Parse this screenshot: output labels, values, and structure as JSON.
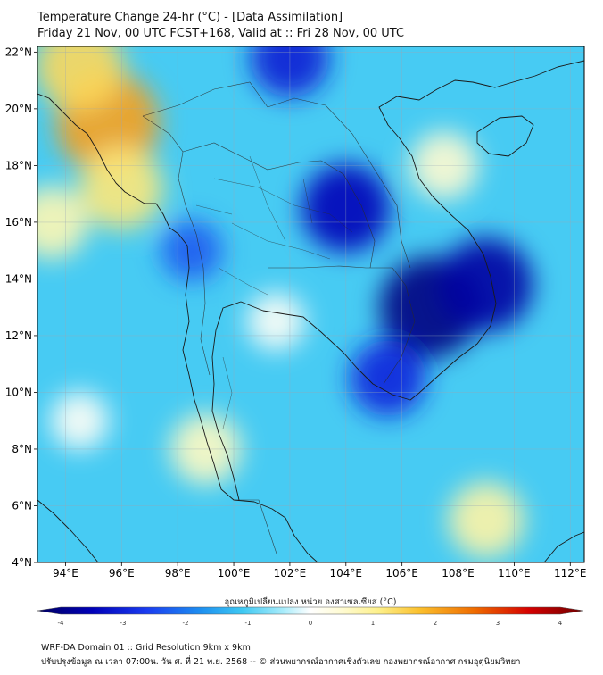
{
  "header": {
    "title": "Temperature Change 24-hr (°C) - [Data Assimilation]",
    "subtitle": "Friday 21 Nov, 00 UTC FCST+168, Valid at :: Fri 28 Nov, 00 UTC"
  },
  "axes": {
    "lon_labels": [
      "94°E",
      "96°E",
      "98°E",
      "100°E",
      "102°E",
      "104°E",
      "106°E",
      "108°E",
      "110°E",
      "112°E"
    ],
    "lon_values": [
      94,
      96,
      98,
      100,
      102,
      104,
      106,
      108,
      110,
      112
    ],
    "lat_labels": [
      "22°N",
      "20°N",
      "18°N",
      "16°N",
      "14°N",
      "12°N",
      "10°N",
      "8°N",
      "6°N",
      "4°N"
    ],
    "lat_values": [
      22,
      20,
      18,
      16,
      14,
      12,
      10,
      8,
      6,
      4
    ],
    "lon_range": [
      93,
      112.5
    ],
    "lat_range": [
      4,
      22.2
    ]
  },
  "colorbar": {
    "label": "อุณหภูมิเปลี่ยนแปลง หน่วย องศาเซลเซียส (°C)",
    "tick_labels": [
      "-4",
      "-3",
      "-2",
      "-1",
      "0",
      "1",
      "2",
      "3",
      "4"
    ],
    "tick_values": [
      -4,
      -3,
      -2,
      -1,
      0,
      1,
      2,
      3,
      4
    ],
    "range": [
      -4,
      4
    ]
  },
  "field": {
    "base_value": -0.95,
    "anomalies": [
      {
        "region": "Myanmar warm (Bay of Bengal coast)",
        "lon": 95.5,
        "lat": 19.5,
        "value": 1.9
      },
      {
        "region": "Myanmar warm north",
        "lon": 94.5,
        "lat": 21.5,
        "value": 1.3
      },
      {
        "region": "Myanmar warm south",
        "lon": 96,
        "lat": 17.2,
        "value": 1.1
      },
      {
        "region": "West coast warm",
        "lon": 93.5,
        "lat": 16,
        "value": 0.7
      },
      {
        "region": "Cambodia / South Vietnam cold",
        "lon": 107,
        "lat": 13,
        "value": -3.7
      },
      {
        "region": "Cambodia east cold",
        "lon": 109,
        "lat": 13.8,
        "value": -3.4
      },
      {
        "region": "Northeast Thailand cold",
        "lon": 104,
        "lat": 16.5,
        "value": -3.2
      },
      {
        "region": "Mekong delta cold",
        "lon": 105.5,
        "lat": 10.5,
        "value": -2.7
      },
      {
        "region": "North Laos cold",
        "lon": 102,
        "lat": 21.8,
        "value": -2.8
      },
      {
        "region": "Northwest Thailand cold",
        "lon": 98.5,
        "lat": 15,
        "value": -2.1
      },
      {
        "region": "Gulf of Thailand near-neutral",
        "lon": 101.5,
        "lat": 12.5,
        "value": 0.1
      },
      {
        "region": "Hainan warm spot",
        "lon": 107.5,
        "lat": 18,
        "value": 0.5
      },
      {
        "region": "Malay peninsula warm",
        "lon": 99,
        "lat": 8,
        "value": 0.6
      },
      {
        "region": "South China Sea warm",
        "lon": 109,
        "lat": 5.5,
        "value": 0.8
      },
      {
        "region": "Andaman sea neutral",
        "lon": 94.5,
        "lat": 9,
        "value": 0.1
      }
    ]
  },
  "footer": {
    "line1": "WRF-DA Domain 01 :: Grid Resolution 9km x 9km",
    "line2": "ปรับปรุงข้อมูล ณ เวลา 07:00น. วัน ศ. ที่ 21 พ.ย. 2568 -- © ส่วนพยากรณ์อากาศเชิงตัวเลข กองพยากรณ์อากาศ กรมอุตุนิยมวิทยา"
  }
}
